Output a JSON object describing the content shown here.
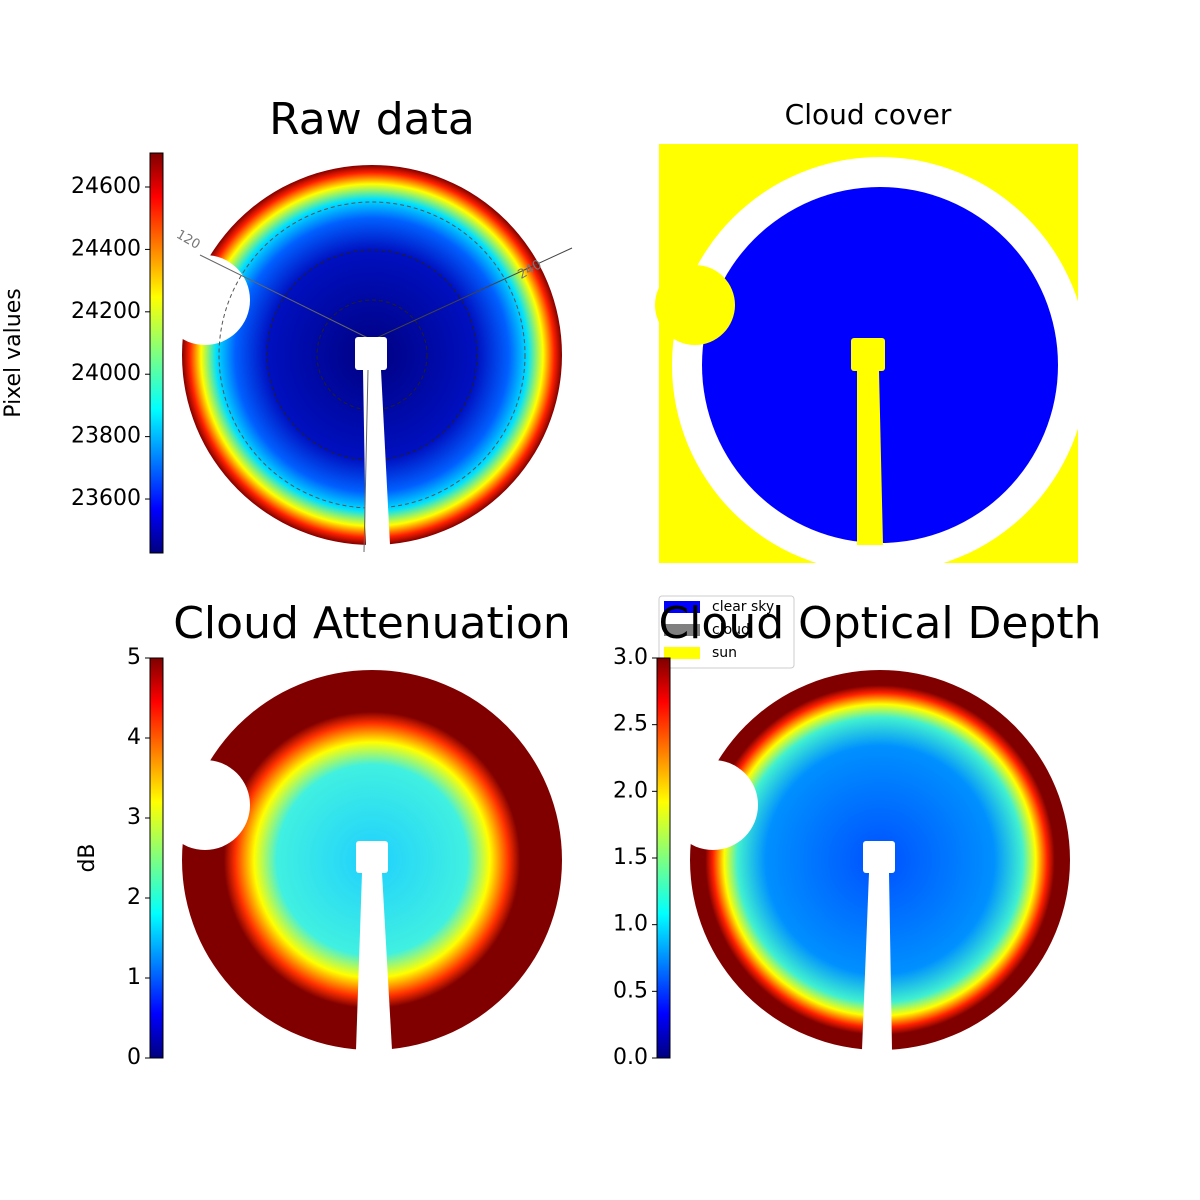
{
  "chart_data": [
    {
      "type": "image",
      "title": "Raw data",
      "annotations": [
        "120",
        "240"
      ],
      "colorbar": {
        "label": "Pixel values",
        "lim": [
          23427,
          24709
        ],
        "ticks": [
          23600,
          23800,
          24000,
          24200,
          24400,
          24600
        ]
      }
    },
    {
      "type": "image",
      "title": "Cloud cover",
      "series": [
        {
          "name": "clear sky",
          "color": "#0000ff"
        },
        {
          "name": "cloud",
          "color": "#808080"
        },
        {
          "name": "sun",
          "color": "#ffff00"
        }
      ]
    },
    {
      "type": "image",
      "title": "Cloud Attenuation",
      "colorbar": {
        "label": "dB",
        "lim": [
          0,
          5
        ],
        "ticks": [
          0,
          1,
          2,
          3,
          4,
          5
        ]
      }
    },
    {
      "type": "image",
      "title": "Cloud Optical Depth",
      "colorbar": {
        "lim": [
          0,
          3
        ],
        "ticks": [
          {
            "value": 0,
            "label": "0.0"
          },
          0.5,
          {
            "value": 1,
            "label": "1.0"
          },
          1.5,
          {
            "value": 2,
            "label": "2.0"
          },
          2.5,
          {
            "value": 3,
            "label": "3.0"
          }
        ]
      }
    }
  ]
}
